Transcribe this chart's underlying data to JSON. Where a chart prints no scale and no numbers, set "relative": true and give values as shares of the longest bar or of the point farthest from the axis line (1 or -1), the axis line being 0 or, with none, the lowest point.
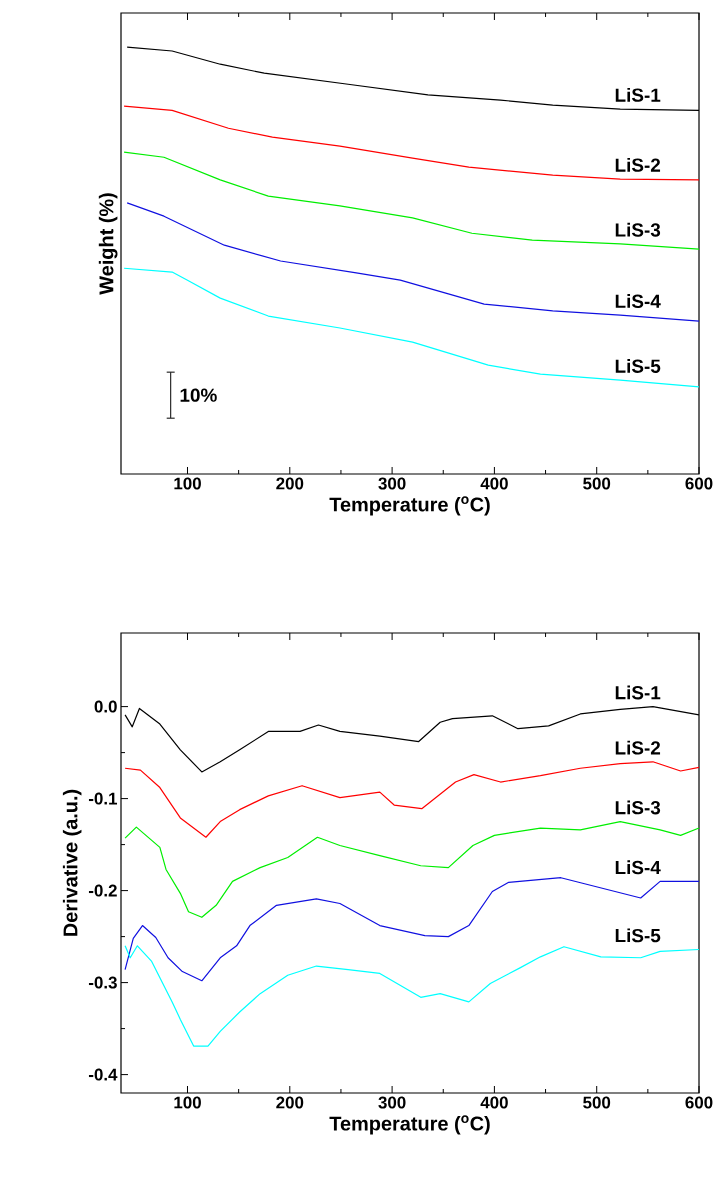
{
  "chart_data": [
    {
      "type": "line",
      "relative": true,
      "xlabel": "Temperature ($^{o}$C)",
      "ylabel": "Weight (%)",
      "xlim": [
        35,
        600
      ],
      "xticks": [
        100,
        200,
        300,
        400,
        500,
        600
      ],
      "annotations": [
        "10%"
      ],
      "series": [
        {
          "name": "LiS-1",
          "color": "#000000",
          "x": [
            41,
            85,
            132,
            175,
            257,
            335,
            406,
            457,
            523,
            600
          ],
          "values": [
            1.0,
            0.991,
            0.96,
            0.939,
            0.913,
            0.888,
            0.876,
            0.864,
            0.855,
            0.852
          ]
        },
        {
          "name": "LiS-2",
          "color": "#ff0000",
          "x": [
            38,
            85,
            140,
            183,
            249,
            320,
            375,
            457,
            523,
            600
          ],
          "values": [
            0.862,
            0.852,
            0.81,
            0.789,
            0.768,
            0.74,
            0.719,
            0.7,
            0.691,
            0.689
          ]
        },
        {
          "name": "LiS-3",
          "color": "#00ee00",
          "x": [
            38,
            77,
            132,
            179,
            249,
            320,
            378,
            437,
            523,
            600
          ],
          "values": [
            0.754,
            0.742,
            0.689,
            0.651,
            0.628,
            0.6,
            0.564,
            0.548,
            0.539,
            0.527
          ]
        },
        {
          "name": "LiS-4",
          "color": "#1010e0",
          "x": [
            41,
            77,
            136,
            191,
            265,
            308,
            355,
            390,
            457,
            523,
            600
          ],
          "values": [
            0.635,
            0.604,
            0.536,
            0.499,
            0.471,
            0.454,
            0.422,
            0.398,
            0.382,
            0.372,
            0.358
          ]
        },
        {
          "name": "LiS-5",
          "color": "#00ffff",
          "x": [
            38,
            85,
            100,
            132,
            179,
            249,
            320,
            394,
            445,
            523,
            600
          ],
          "values": [
            0.482,
            0.473,
            0.454,
            0.412,
            0.37,
            0.342,
            0.309,
            0.255,
            0.234,
            0.22,
            0.204
          ]
        }
      ]
    },
    {
      "type": "line",
      "xlabel": "Temperature ($^{o}$C)",
      "ylabel": "Derivative (a.u.)",
      "xlim": [
        35,
        600
      ],
      "xticks": [
        100,
        200,
        300,
        400,
        500,
        600
      ],
      "ylim": [
        -0.42,
        0.08
      ],
      "yticks": [
        {
          "value": 0,
          "label": "0.0"
        },
        {
          "value": -0.1,
          "label": "-0.1"
        },
        {
          "value": -0.2,
          "label": "-0.2"
        },
        {
          "value": -0.3,
          "label": "-0.3"
        },
        {
          "value": -0.4,
          "label": "-0.4"
        }
      ],
      "series": [
        {
          "name": "LiS-1",
          "color": "#000000",
          "x": [
            39,
            46,
            53,
            73,
            93,
            114,
            132,
            151,
            179,
            210,
            228,
            249,
            288,
            326,
            347,
            359,
            398,
            423,
            453,
            484,
            523,
            555,
            600
          ],
          "values": [
            -0.009,
            -0.022,
            -0.002,
            -0.019,
            -0.047,
            -0.071,
            -0.06,
            -0.047,
            -0.027,
            -0.027,
            -0.02,
            -0.027,
            -0.032,
            -0.038,
            -0.017,
            -0.013,
            -0.01,
            -0.024,
            -0.021,
            -0.008,
            -0.003,
            0.0,
            -0.009
          ]
        },
        {
          "name": "LiS-2",
          "color": "#ff0000",
          "x": [
            39,
            54,
            73,
            93,
            118,
            132,
            151,
            179,
            212,
            249,
            288,
            302,
            329,
            362,
            380,
            406,
            445,
            484,
            523,
            555,
            582,
            600
          ],
          "values": [
            -0.067,
            -0.069,
            -0.088,
            -0.121,
            -0.142,
            -0.125,
            -0.112,
            -0.097,
            -0.086,
            -0.099,
            -0.093,
            -0.107,
            -0.111,
            -0.082,
            -0.074,
            -0.082,
            -0.075,
            -0.067,
            -0.062,
            -0.06,
            -0.07,
            -0.066
          ]
        },
        {
          "name": "LiS-3",
          "color": "#00ee00",
          "x": [
            39,
            50,
            73,
            79,
            93,
            101,
            114,
            128,
            144,
            171,
            198,
            227,
            249,
            288,
            328,
            355,
            379,
            400,
            445,
            484,
            523,
            562,
            582,
            600
          ],
          "values": [
            -0.143,
            -0.131,
            -0.153,
            -0.177,
            -0.203,
            -0.223,
            -0.229,
            -0.216,
            -0.19,
            -0.175,
            -0.164,
            -0.142,
            -0.151,
            -0.162,
            -0.173,
            -0.175,
            -0.151,
            -0.14,
            -0.132,
            -0.134,
            -0.125,
            -0.134,
            -0.14,
            -0.132
          ]
        },
        {
          "name": "LiS-4",
          "color": "#1010e0",
          "x": [
            39,
            47,
            56,
            69,
            81,
            95,
            114,
            132,
            148,
            161,
            187,
            226,
            249,
            288,
            332,
            355,
            375,
            398,
            414,
            465,
            543,
            562,
            600
          ],
          "values": [
            -0.286,
            -0.252,
            -0.238,
            -0.251,
            -0.273,
            -0.288,
            -0.298,
            -0.273,
            -0.26,
            -0.238,
            -0.216,
            -0.209,
            -0.214,
            -0.238,
            -0.249,
            -0.25,
            -0.238,
            -0.201,
            -0.191,
            -0.186,
            -0.208,
            -0.19,
            -0.19
          ]
        },
        {
          "name": "LiS-5",
          "color": "#00ffff",
          "x": [
            39,
            44,
            51,
            65,
            85,
            93,
            106,
            120,
            132,
            151,
            171,
            198,
            226,
            257,
            288,
            328,
            347,
            375,
            396,
            425,
            445,
            468,
            504,
            543,
            562,
            600
          ],
          "values": [
            -0.26,
            -0.273,
            -0.26,
            -0.277,
            -0.321,
            -0.34,
            -0.369,
            -0.369,
            -0.353,
            -0.332,
            -0.312,
            -0.292,
            -0.282,
            -0.286,
            -0.29,
            -0.316,
            -0.312,
            -0.321,
            -0.301,
            -0.284,
            -0.272,
            -0.261,
            -0.272,
            -0.273,
            -0.266,
            -0.264
          ]
        }
      ]
    }
  ]
}
